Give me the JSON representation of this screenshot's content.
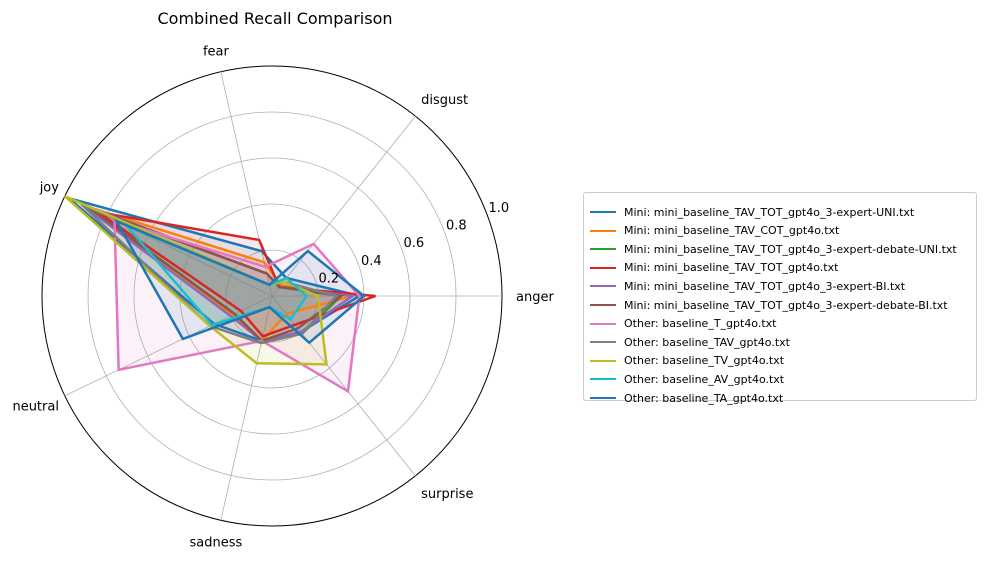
{
  "chart_data": {
    "type": "radar",
    "title": "Combined Recall Comparison",
    "categories": [
      "anger",
      "disgust",
      "fear",
      "joy",
      "neutral",
      "sadness",
      "surprise"
    ],
    "rticks": [
      "0.2",
      "0.4",
      "0.6",
      "0.8",
      "1.0"
    ],
    "rlim": [
      0,
      1.0
    ],
    "grid": true,
    "legend_position": "right",
    "series": [
      {
        "name": "Mini: mini_baseline_TAV_TOT_gpt4o_3-expert-UNI.txt",
        "color": "#1f77b4",
        "values": [
          0.38,
          0.1,
          0.2,
          0.98,
          0.28,
          0.2,
          0.2
        ]
      },
      {
        "name": "Mini: mini_baseline_TAV_COT_gpt4o.txt",
        "color": "#ff7f0e",
        "values": [
          0.35,
          0.06,
          0.15,
          0.9,
          0.19,
          0.2,
          0.1
        ]
      },
      {
        "name": "Mini: mini_baseline_TAV_TOT_gpt4o_3-expert-debate-UNI.txt",
        "color": "#2ca02c",
        "values": [
          0.3,
          0.05,
          0.1,
          0.87,
          0.18,
          0.2,
          0.21
        ]
      },
      {
        "name": "Mini: mini_baseline_TAV_TOT_gpt4o.txt",
        "color": "#d62728",
        "values": [
          0.45,
          0.05,
          0.25,
          0.84,
          0.15,
          0.18,
          0.16
        ]
      },
      {
        "name": "Mini: mini_baseline_TAV_TOT_gpt4o_3-expert-BI.txt",
        "color": "#9467bd",
        "values": [
          0.35,
          0.05,
          0.1,
          0.92,
          0.2,
          0.2,
          0.2
        ]
      },
      {
        "name": "Mini: mini_baseline_TAV_TOT_gpt4o_3-expert-debate-BI.txt",
        "color": "#8c564b",
        "values": [
          0.3,
          0.05,
          0.1,
          0.88,
          0.18,
          0.2,
          0.18
        ]
      },
      {
        "name": "Other: baseline_T_gpt4o.txt",
        "color": "#e377c2",
        "values": [
          0.38,
          0.29,
          0.13,
          0.76,
          0.74,
          0.2,
          0.53
        ]
      },
      {
        "name": "Other: baseline_TAV_gpt4o.txt",
        "color": "#7f7f7f",
        "values": [
          0.28,
          0.08,
          0.05,
          0.92,
          0.3,
          0.21,
          0.21
        ]
      },
      {
        "name": "Other: baseline_TV_gpt4o.txt",
        "color": "#bcbd22",
        "values": [
          0.2,
          0.08,
          0.05,
          1.0,
          0.3,
          0.3,
          0.38
        ]
      },
      {
        "name": "Other: baseline_AV_gpt4o.txt",
        "color": "#17becf",
        "values": [
          0.15,
          0.1,
          0.05,
          0.7,
          0.29,
          0.05,
          0.13
        ]
      },
      {
        "name": "Other: baseline_TA_gpt4o.txt",
        "color": "#1f77b4",
        "values": [
          0.4,
          0.25,
          0.05,
          0.75,
          0.43,
          0.05,
          0.26
        ]
      }
    ]
  }
}
